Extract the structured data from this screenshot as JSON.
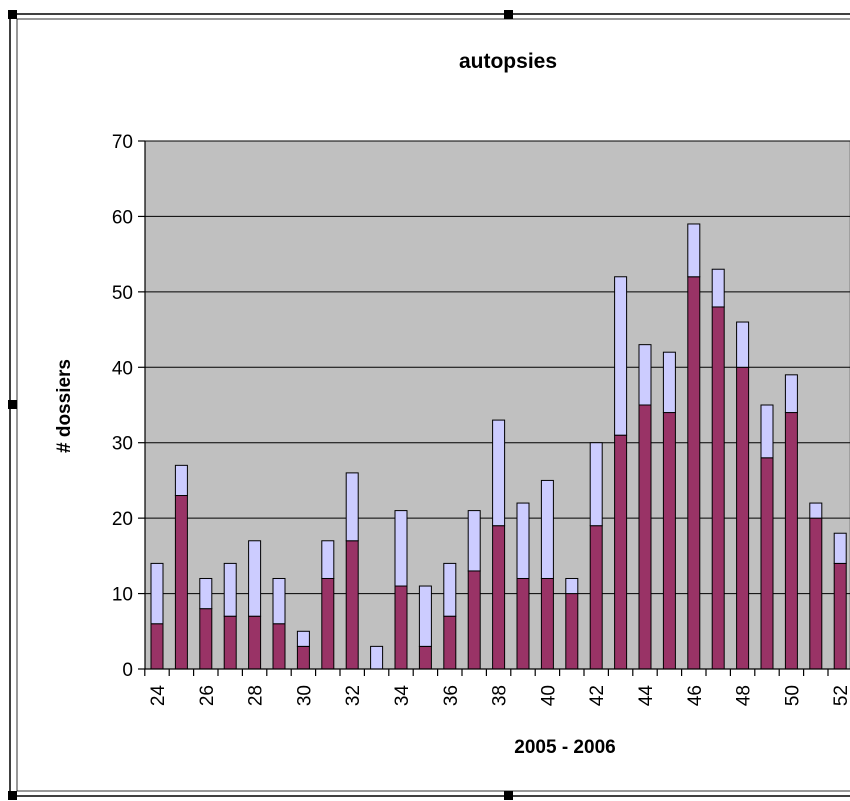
{
  "chart_data": {
    "type": "bar",
    "stacked": true,
    "title": "autopsies",
    "xlabel": "2005 - 2006",
    "ylabel": "# dossiers",
    "ylim": [
      0,
      70
    ],
    "yticks": [
      0,
      10,
      20,
      30,
      40,
      50,
      60,
      70
    ],
    "grid": true,
    "categories": [
      24,
      25,
      26,
      27,
      28,
      29,
      30,
      31,
      32,
      33,
      34,
      35,
      36,
      37,
      38,
      39,
      40,
      41,
      42,
      43,
      44,
      45,
      46,
      47,
      48,
      49,
      50,
      51,
      52
    ],
    "tick_labels": [
      "24",
      "",
      "26",
      "",
      "28",
      "",
      "30",
      "",
      "32",
      "",
      "34",
      "",
      "36",
      "",
      "38",
      "",
      "40",
      "",
      "42",
      "",
      "44",
      "",
      "46",
      "",
      "48",
      "",
      "50",
      "",
      "52"
    ],
    "series": [
      {
        "values": [
          6,
          23,
          8,
          7,
          7,
          6,
          3,
          12,
          17,
          0,
          11,
          3,
          7,
          13,
          19,
          12,
          12,
          10,
          19,
          31,
          35,
          34,
          52,
          48,
          40,
          28,
          34,
          20,
          14
        ]
      },
      {
        "values": [
          8,
          4,
          4,
          7,
          10,
          6,
          2,
          5,
          9,
          3,
          10,
          8,
          7,
          8,
          14,
          10,
          13,
          2,
          11,
          21,
          8,
          8,
          7,
          5,
          6,
          7,
          5,
          2,
          4
        ]
      }
    ],
    "colors": {
      "lower": "#993366",
      "upper": "#ccccff",
      "plot_bg": "#c0c0c0",
      "gridline": "#000000"
    }
  }
}
